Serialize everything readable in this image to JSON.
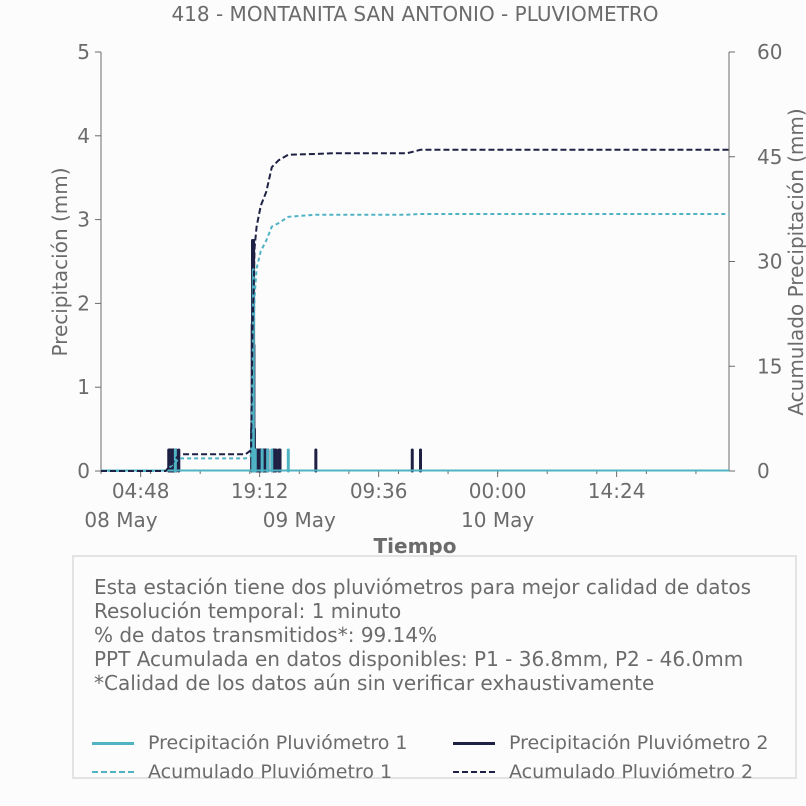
{
  "chart_data": {
    "type": "line",
    "title": "418 - MONTANITA SAN ANTONIO - PLUVIOMETRO",
    "xlabel": "Tiempo",
    "ylabel": "Precipitación (mm)",
    "y2label": "Acumulado Precipitación (mm)",
    "ylim": [
      0,
      5
    ],
    "y2lim": [
      0,
      60
    ],
    "yticks": [
      "0",
      "1",
      "2",
      "3",
      "4",
      "5"
    ],
    "y2ticks": [
      "0",
      "15",
      "30",
      "45",
      "60"
    ],
    "xlim": [
      "2024-05-08 00:00",
      "2024-05-11 04:00"
    ],
    "x_ticks": [
      {
        "t": "2024-05-08 04:48",
        "time": "04:48",
        "date": ""
      },
      {
        "t": "2024-05-08 19:12",
        "time": "19:12",
        "date": ""
      },
      {
        "t": "2024-05-09 09:36",
        "time": "09:36",
        "date": ""
      },
      {
        "t": "2024-05-10 00:00",
        "time": "00:00",
        "date": ""
      },
      {
        "t": "2024-05-10 14:24",
        "time": "14:24",
        "date": ""
      }
    ],
    "date_labels": [
      {
        "t": "2024-05-08 00:00",
        "label": "08 May"
      },
      {
        "t": "2024-05-09 00:00",
        "label": "09 May"
      },
      {
        "t": "2024-05-10 00:00",
        "label": "10 May"
      }
    ],
    "grid": false,
    "series": [
      {
        "name": "Precipitación Pluviómetro 1",
        "axis": "left",
        "kind": "bars",
        "color": "#4fb3c4",
        "points": [
          [
            "2024-05-08 09:00",
            0.25
          ],
          [
            "2024-05-08 18:22",
            0.3
          ],
          [
            "2024-05-08 18:26",
            2.4
          ],
          [
            "2024-05-08 18:32",
            0.25
          ],
          [
            "2024-05-08 18:40",
            0.25
          ],
          [
            "2024-05-08 19:30",
            0.25
          ],
          [
            "2024-05-08 20:10",
            0.25
          ],
          [
            "2024-05-08 20:40",
            0.25
          ],
          [
            "2024-05-08 22:40",
            0.25
          ]
        ]
      },
      {
        "name": "Precipitación Pluviómetro 2",
        "axis": "left",
        "kind": "bars",
        "color": "#1e2044",
        "points": [
          [
            "2024-05-08 08:12",
            0.25
          ],
          [
            "2024-05-08 08:18",
            0.25
          ],
          [
            "2024-05-08 08:24",
            0.25
          ],
          [
            "2024-05-08 08:30",
            0.25
          ],
          [
            "2024-05-08 08:36",
            0.25
          ],
          [
            "2024-05-08 08:42",
            0.25
          ],
          [
            "2024-05-08 08:48",
            0.25
          ],
          [
            "2024-05-08 08:54",
            0.25
          ],
          [
            "2024-05-08 09:05",
            0.25
          ],
          [
            "2024-05-08 09:25",
            0.25
          ],
          [
            "2024-05-08 18:14",
            0.5
          ],
          [
            "2024-05-08 18:16",
            0.75
          ],
          [
            "2024-05-08 18:18",
            1.75
          ],
          [
            "2024-05-08 18:20",
            2.75
          ],
          [
            "2024-05-08 18:22",
            2.5
          ],
          [
            "2024-05-08 18:24",
            2.0
          ],
          [
            "2024-05-08 18:28",
            2.75
          ],
          [
            "2024-05-08 18:30",
            1.5
          ],
          [
            "2024-05-08 18:34",
            0.5
          ],
          [
            "2024-05-08 18:38",
            0.25
          ],
          [
            "2024-05-08 18:45",
            0.25
          ],
          [
            "2024-05-08 18:52",
            0.25
          ],
          [
            "2024-05-08 19:00",
            0.25
          ],
          [
            "2024-05-08 19:08",
            0.25
          ],
          [
            "2024-05-08 19:16",
            0.25
          ],
          [
            "2024-05-08 19:24",
            0.25
          ],
          [
            "2024-05-08 19:32",
            0.25
          ],
          [
            "2024-05-08 19:40",
            0.25
          ],
          [
            "2024-05-08 19:48",
            0.25
          ],
          [
            "2024-05-08 19:56",
            0.25
          ],
          [
            "2024-05-08 20:04",
            0.25
          ],
          [
            "2024-05-08 20:12",
            0.25
          ],
          [
            "2024-05-08 20:50",
            0.25
          ],
          [
            "2024-05-08 21:00",
            0.25
          ],
          [
            "2024-05-08 21:10",
            0.25
          ],
          [
            "2024-05-08 21:30",
            0.25
          ],
          [
            "2024-05-08 21:40",
            0.25
          ],
          [
            "2024-05-09 02:00",
            0.25
          ],
          [
            "2024-05-09 13:40",
            0.25
          ],
          [
            "2024-05-09 14:40",
            0.25
          ]
        ]
      },
      {
        "name": "Acumulado Pluviómetro 1",
        "axis": "right",
        "kind": "line",
        "dash": "4,3",
        "color": "#4fb3c4",
        "points": [
          [
            "2024-05-08 00:00",
            0
          ],
          [
            "2024-05-08 07:50",
            0
          ],
          [
            "2024-05-08 09:30",
            1.8
          ],
          [
            "2024-05-08 17:30",
            1.8
          ],
          [
            "2024-05-08 18:10",
            2.2
          ],
          [
            "2024-05-08 18:20",
            15
          ],
          [
            "2024-05-08 18:35",
            25
          ],
          [
            "2024-05-08 18:50",
            29
          ],
          [
            "2024-05-08 19:20",
            31.5
          ],
          [
            "2024-05-08 20:00",
            33
          ],
          [
            "2024-05-08 20:40",
            35
          ],
          [
            "2024-05-08 21:30",
            35.5
          ],
          [
            "2024-05-08 22:40",
            36.4
          ],
          [
            "2024-05-09 02:00",
            36.7
          ],
          [
            "2024-05-09 13:00",
            36.7
          ],
          [
            "2024-05-09 14:40",
            36.8
          ],
          [
            "2024-05-11 04:00",
            36.8
          ]
        ]
      },
      {
        "name": "Acumulado Pluviómetro 2",
        "axis": "right",
        "kind": "line",
        "dash": "6,3",
        "color": "#1e2044",
        "points": [
          [
            "2024-05-08 00:00",
            0
          ],
          [
            "2024-05-08 07:50",
            0
          ],
          [
            "2024-05-08 09:30",
            2.4
          ],
          [
            "2024-05-08 17:30",
            2.4
          ],
          [
            "2024-05-08 18:10",
            3.0
          ],
          [
            "2024-05-08 18:20",
            20
          ],
          [
            "2024-05-08 18:35",
            32
          ],
          [
            "2024-05-08 18:50",
            35
          ],
          [
            "2024-05-08 19:20",
            38
          ],
          [
            "2024-05-08 20:00",
            40
          ],
          [
            "2024-05-08 20:40",
            43.5
          ],
          [
            "2024-05-08 21:30",
            44.5
          ],
          [
            "2024-05-08 22:40",
            45.3
          ],
          [
            "2024-05-09 02:00",
            45.4
          ],
          [
            "2024-05-09 04:00",
            45.5
          ],
          [
            "2024-05-09 13:00",
            45.5
          ],
          [
            "2024-05-09 14:40",
            46.0
          ],
          [
            "2024-05-11 04:00",
            46.0
          ]
        ]
      }
    ]
  },
  "info": {
    "line1": "Esta estación tiene dos pluviómetros para mejor calidad de datos",
    "line2": "Resolución temporal: 1 minuto",
    "line3": "% de datos transmitidos*: 99.14%",
    "line4": "PPT Acumulada en datos disponibles: P1 - 36.8mm, P2 - 46.0mm",
    "line5": "*Calidad de los datos aún sin verificar exhaustivamente"
  },
  "legend": [
    {
      "label": "Precipitación Pluviómetro 1",
      "color": "#4fb3c4",
      "dashed": false
    },
    {
      "label": "Precipitación Pluviómetro 2",
      "color": "#1e2044",
      "dashed": false
    },
    {
      "label": "Acumulado Pluviómetro 1",
      "color": "#4fb3c4",
      "dashed": true
    },
    {
      "label": "Acumulado Pluviómetro 2",
      "color": "#1e2044",
      "dashed": true
    }
  ]
}
